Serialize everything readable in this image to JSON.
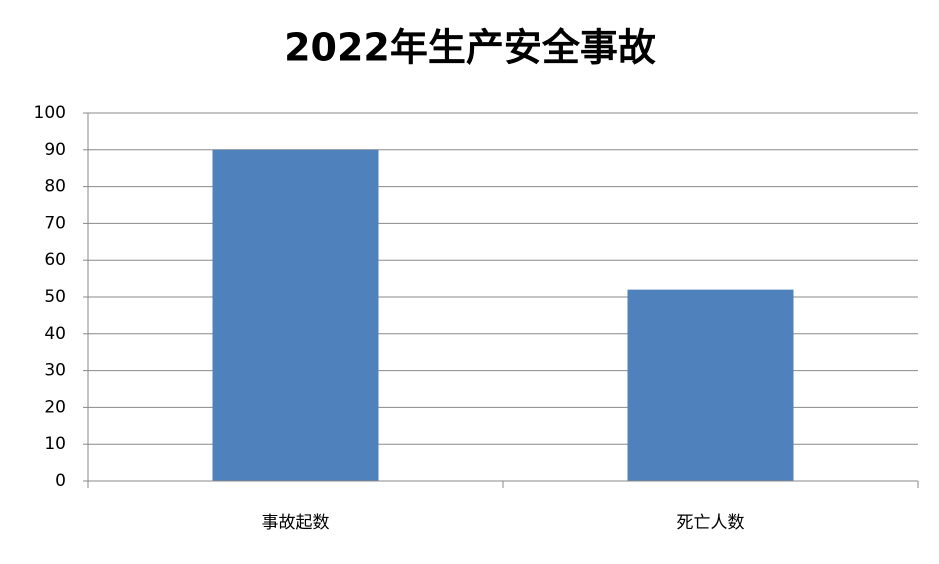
{
  "chart_data": {
    "type": "bar",
    "title": "2022年生产安全事故",
    "categories": [
      "事故起数",
      "死亡人数"
    ],
    "values": [
      90,
      52
    ],
    "color": "#4f81bd",
    "ylim": [
      0,
      100
    ],
    "yticks": [
      0,
      10,
      20,
      30,
      40,
      50,
      60,
      70,
      80,
      90,
      100
    ],
    "grid": true
  }
}
